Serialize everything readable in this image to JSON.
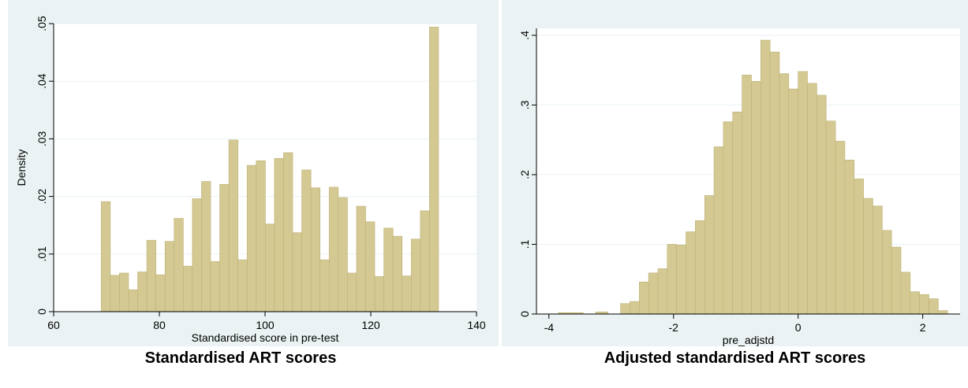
{
  "colors": {
    "bar_fill": "#d4c992",
    "bar_stroke": "#bdb076",
    "plot_bg": "#ffffff",
    "outer_bg": "#eaf2f3",
    "grid": "#eaf2f3"
  },
  "chart_data": [
    {
      "type": "bar",
      "title": "Standardised ART scores",
      "xlabel": "Standardised score in pre-test",
      "ylabel": "Density",
      "xlim": [
        60,
        140
      ],
      "ylim": [
        0,
        0.05
      ],
      "x_ticks": [
        60,
        80,
        100,
        120,
        140
      ],
      "y_ticks": [
        0,
        0.01,
        0.02,
        0.03,
        0.04,
        0.05
      ],
      "x_tick_labels": [
        "60",
        "80",
        "100",
        "120",
        "140"
      ],
      "y_tick_labels": [
        "0",
        ".01",
        ".02",
        ".03",
        ".04",
        ".05"
      ],
      "grid": true,
      "bin_start": 69,
      "bin_width": 1.725,
      "values": [
        0.0191,
        0.0063,
        0.0067,
        0.0038,
        0.0069,
        0.0124,
        0.0064,
        0.0122,
        0.0162,
        0.0079,
        0.0196,
        0.0226,
        0.0087,
        0.0221,
        0.0298,
        0.009,
        0.0254,
        0.0262,
        0.0152,
        0.0266,
        0.0276,
        0.0137,
        0.0246,
        0.0215,
        0.009,
        0.0216,
        0.0198,
        0.0067,
        0.0183,
        0.0156,
        0.0061,
        0.0145,
        0.0131,
        0.0062,
        0.0126,
        0.0175,
        0.0494
      ]
    },
    {
      "type": "bar",
      "title": "Adjusted standardised ART scores",
      "xlabel": "pre_adjstd",
      "ylabel": "",
      "xlim": [
        -4.2,
        2.6
      ],
      "ylim": [
        0,
        0.41
      ],
      "x_ticks": [
        -4,
        -2,
        0,
        2
      ],
      "y_ticks": [
        0,
        0.1,
        0.2,
        0.3,
        0.4
      ],
      "x_tick_labels": [
        "-4",
        "-2",
        "0",
        "2"
      ],
      "y_tick_labels": [
        "0",
        ".1",
        ".2",
        ".3",
        ".4"
      ],
      "grid": true,
      "bars": [
        {
          "x0": -3.85,
          "x1": -3.65,
          "v": 0.002
        },
        {
          "x0": -3.65,
          "x1": -3.45,
          "v": 0.002
        },
        {
          "x0": -3.25,
          "x1": -3.05,
          "v": 0.003
        },
        {
          "x0": -2.85,
          "x1": -2.7,
          "v": 0.015
        },
        {
          "x0": -2.7,
          "x1": -2.55,
          "v": 0.018
        },
        {
          "x0": -2.55,
          "x1": -2.4,
          "v": 0.046
        },
        {
          "x0": -2.4,
          "x1": -2.25,
          "v": 0.059
        },
        {
          "x0": -2.25,
          "x1": -2.1,
          "v": 0.065
        },
        {
          "x0": -2.1,
          "x1": -1.95,
          "v": 0.1
        },
        {
          "x0": -1.95,
          "x1": -1.8,
          "v": 0.099
        },
        {
          "x0": -1.8,
          "x1": -1.65,
          "v": 0.118
        },
        {
          "x0": -1.65,
          "x1": -1.5,
          "v": 0.134
        },
        {
          "x0": -1.5,
          "x1": -1.35,
          "v": 0.17
        },
        {
          "x0": -1.35,
          "x1": -1.2,
          "v": 0.24
        },
        {
          "x0": -1.2,
          "x1": -1.05,
          "v": 0.276
        },
        {
          "x0": -1.05,
          "x1": -0.9,
          "v": 0.29
        },
        {
          "x0": -0.9,
          "x1": -0.75,
          "v": 0.343
        },
        {
          "x0": -0.75,
          "x1": -0.6,
          "v": 0.334
        },
        {
          "x0": -0.6,
          "x1": -0.45,
          "v": 0.393
        },
        {
          "x0": -0.45,
          "x1": -0.3,
          "v": 0.376
        },
        {
          "x0": -0.3,
          "x1": -0.15,
          "v": 0.345
        },
        {
          "x0": -0.15,
          "x1": 0.0,
          "v": 0.323
        },
        {
          "x0": 0.0,
          "x1": 0.15,
          "v": 0.348
        },
        {
          "x0": 0.15,
          "x1": 0.3,
          "v": 0.331
        },
        {
          "x0": 0.3,
          "x1": 0.45,
          "v": 0.314
        },
        {
          "x0": 0.45,
          "x1": 0.6,
          "v": 0.277
        },
        {
          "x0": 0.6,
          "x1": 0.75,
          "v": 0.248
        },
        {
          "x0": 0.75,
          "x1": 0.9,
          "v": 0.221
        },
        {
          "x0": 0.9,
          "x1": 1.05,
          "v": 0.194
        },
        {
          "x0": 1.05,
          "x1": 1.2,
          "v": 0.166
        },
        {
          "x0": 1.2,
          "x1": 1.35,
          "v": 0.155
        },
        {
          "x0": 1.35,
          "x1": 1.5,
          "v": 0.12
        },
        {
          "x0": 1.5,
          "x1": 1.65,
          "v": 0.096
        },
        {
          "x0": 1.65,
          "x1": 1.8,
          "v": 0.06
        },
        {
          "x0": 1.8,
          "x1": 1.95,
          "v": 0.032
        },
        {
          "x0": 1.95,
          "x1": 2.1,
          "v": 0.028
        },
        {
          "x0": 2.1,
          "x1": 2.25,
          "v": 0.022
        },
        {
          "x0": 2.25,
          "x1": 2.4,
          "v": 0.005
        }
      ]
    }
  ]
}
